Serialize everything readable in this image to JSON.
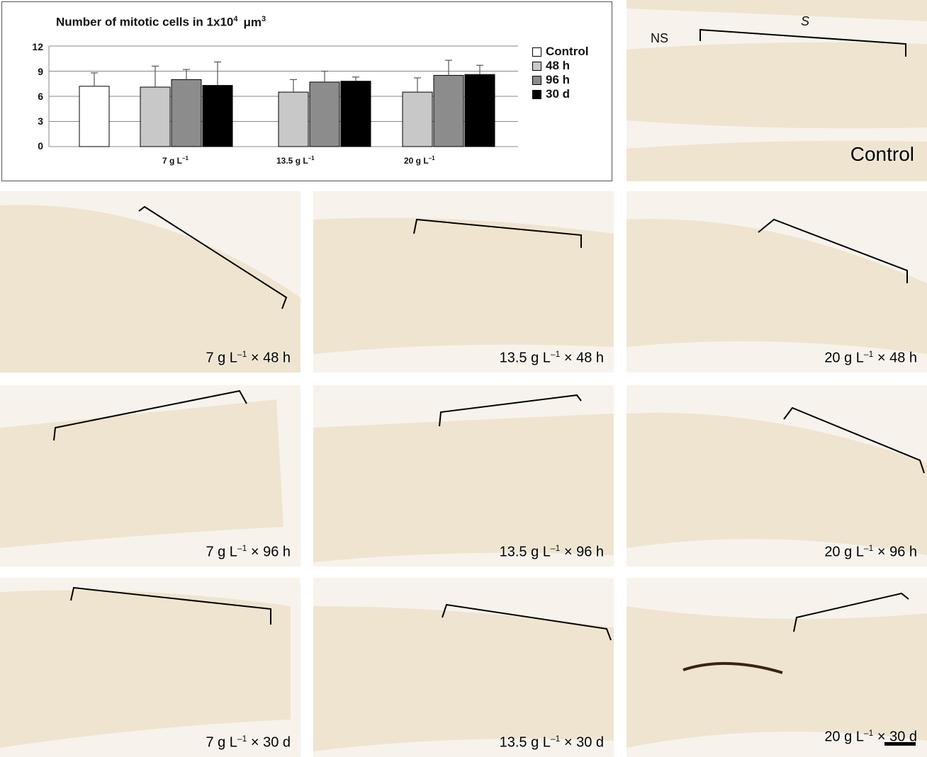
{
  "chart_data": {
    "type": "bar",
    "title": "Number of mitotic cells in 1x10",
    "title_sup": "4",
    "title_unit": "μm",
    "title_unit_sup": "3",
    "ylim": [
      0,
      12
    ],
    "yticks": [
      "12",
      "9",
      "6",
      "3",
      "0"
    ],
    "grid": true,
    "legend_position": "right",
    "groups": [
      {
        "label": "7 g L",
        "sup": "–1"
      },
      {
        "label": "13.5 g L",
        "sup": "–1"
      },
      {
        "label": "20 g L",
        "sup": "–1"
      }
    ],
    "control": {
      "name": "Control",
      "value": 7.2,
      "error": 1.6,
      "color": "#ffffff"
    },
    "series": [
      {
        "name": "48 h",
        "color": "#c8c8c8",
        "values": [
          7.1,
          6.5,
          6.5
        ],
        "errors": [
          2.5,
          1.5,
          1.7
        ]
      },
      {
        "name": "96 h",
        "color": "#8c8c8c",
        "values": [
          8.0,
          7.7,
          8.5
        ],
        "errors": [
          1.2,
          1.3,
          1.8
        ]
      },
      {
        "name": "30 d",
        "color": "#000000",
        "values": [
          7.3,
          7.8,
          8.6
        ],
        "errors": [
          2.8,
          0.5,
          1.1
        ]
      }
    ]
  },
  "panels": {
    "control": {
      "label": "Control",
      "ns": "NS",
      "s": "S"
    },
    "p7_48": {
      "text": "7 g L",
      "sup": "–1",
      "suffix": " × 48 h"
    },
    "p135_48": {
      "text": "13.5 g L",
      "sup": "–1",
      "suffix": " × 48 h"
    },
    "p20_48": {
      "text": "20 g L",
      "sup": "–1",
      "suffix": " × 48 h"
    },
    "p7_96": {
      "text": "7 g L",
      "sup": "–1",
      "suffix": " × 96 h"
    },
    "p135_96": {
      "text": "13.5 g L",
      "sup": "–1",
      "suffix": " × 96 h"
    },
    "p20_96": {
      "text": "20 g L",
      "sup": "–1",
      "suffix": " × 96 h"
    },
    "p7_30": {
      "text": "7 g L",
      "sup": "–1",
      "suffix": " × 30 d"
    },
    "p135_30": {
      "text": "13.5 g L",
      "sup": "–1",
      "suffix": " × 30 d"
    },
    "p20_30": {
      "text": "20 g L",
      "sup": "–1",
      "suffix": " × 30 d"
    }
  },
  "colors": {
    "tissue": "#f1e8d6",
    "stain": "#9a5a22",
    "background": "#f7f3ec"
  }
}
